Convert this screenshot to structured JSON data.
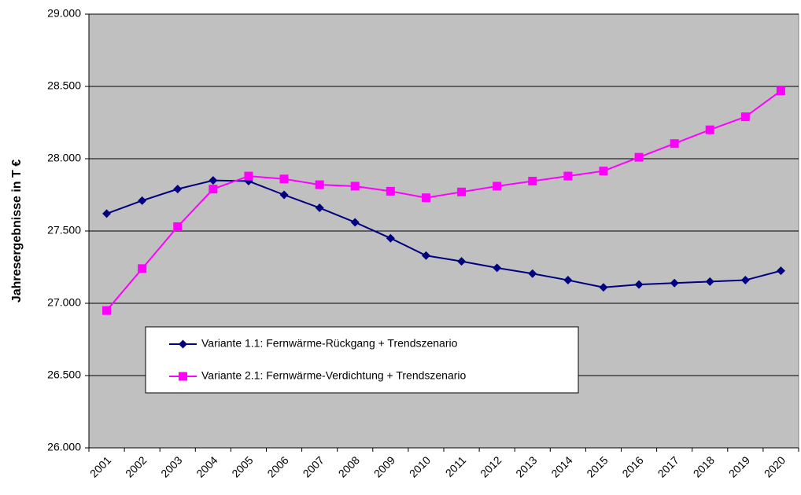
{
  "chart_data": {
    "type": "line",
    "y_label": "Jahresergebnisse in T €",
    "categories": [
      "2001",
      "2002",
      "2003",
      "2004",
      "2005",
      "2006",
      "2007",
      "2008",
      "2009",
      "2010",
      "2011",
      "2012",
      "2013",
      "2014",
      "2015",
      "2016",
      "2017",
      "2018",
      "2019",
      "2020"
    ],
    "series": [
      {
        "name": "Variante 1.1: Fernwärme-Rückgang + Trendszenario",
        "color": "#000080",
        "marker": "diamond",
        "values": [
          27620,
          27710,
          27790,
          27850,
          27845,
          27750,
          27660,
          27560,
          27450,
          27330,
          27290,
          27245,
          27205,
          27160,
          27110,
          27130,
          27140,
          27150,
          27160,
          27225
        ]
      },
      {
        "name": "Variante 2.1: Fernwärme-Verdichtung + Trendszenario",
        "color": "#ff00ff",
        "marker": "square",
        "values": [
          26950,
          27240,
          27530,
          27790,
          27880,
          27860,
          27820,
          27810,
          27775,
          27730,
          27770,
          27810,
          27845,
          27880,
          27915,
          28010,
          28105,
          28200,
          28290,
          28470
        ]
      }
    ],
    "ylim": [
      26000,
      29000
    ],
    "yticks": [
      {
        "value": 26000,
        "label": "26.000"
      },
      {
        "value": 26500,
        "label": "26.500"
      },
      {
        "value": 27000,
        "label": "27.000"
      },
      {
        "value": 27500,
        "label": "27.500"
      },
      {
        "value": 28000,
        "label": "28.000"
      },
      {
        "value": 28500,
        "label": "28.500"
      },
      {
        "value": 29000,
        "label": "29.000"
      }
    ],
    "grid": true,
    "plot_background": "#c0c0c0"
  }
}
